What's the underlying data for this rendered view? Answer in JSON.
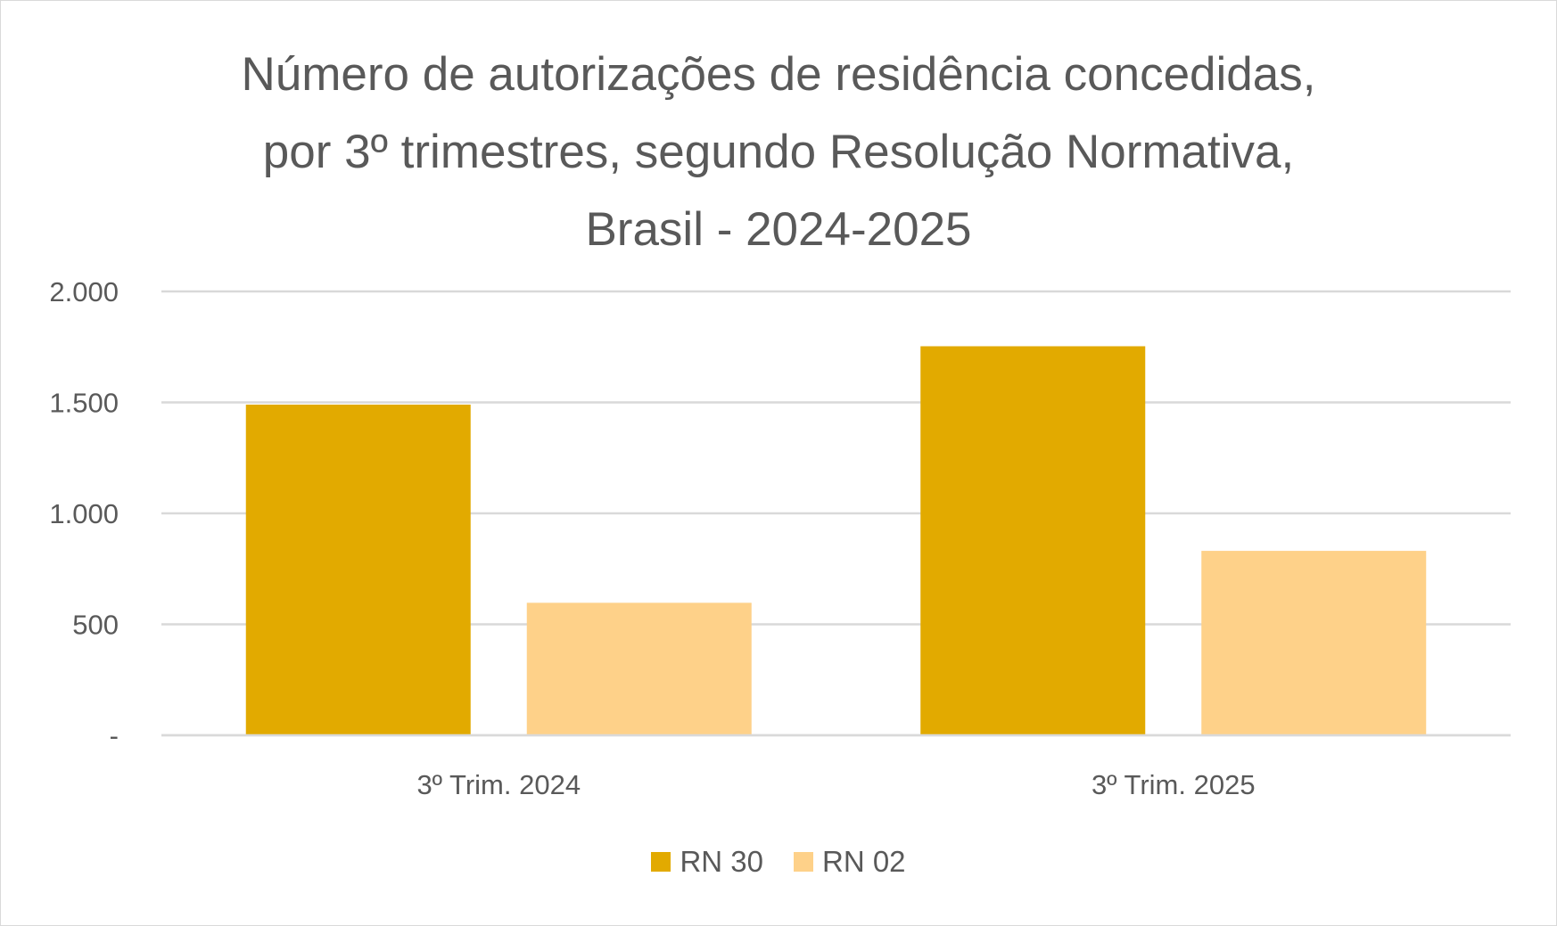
{
  "chart_data": {
    "type": "bar",
    "title_lines": [
      "Número de autorizações de residência concedidas,",
      "por 3º trimestres, segundo Resolução Normativa,",
      "Brasil - 2024-2025"
    ],
    "categories": [
      "3º Trim. 2024",
      "3º Trim. 2025"
    ],
    "series": [
      {
        "name": "RN 30",
        "values": [
          1490,
          1753
        ],
        "color": "#E2AA00"
      },
      {
        "name": "RN 02",
        "values": [
          597,
          831
        ],
        "color": "#FED189"
      }
    ],
    "ylim": [
      0,
      2000
    ],
    "yticks": [
      0,
      500,
      1000,
      1500,
      2000
    ],
    "ytick_labels": [
      "-",
      "500",
      "1.000",
      "1.500",
      "2.000"
    ],
    "grid": true,
    "legend_position": "bottom",
    "xlabel": "",
    "ylabel": ""
  }
}
